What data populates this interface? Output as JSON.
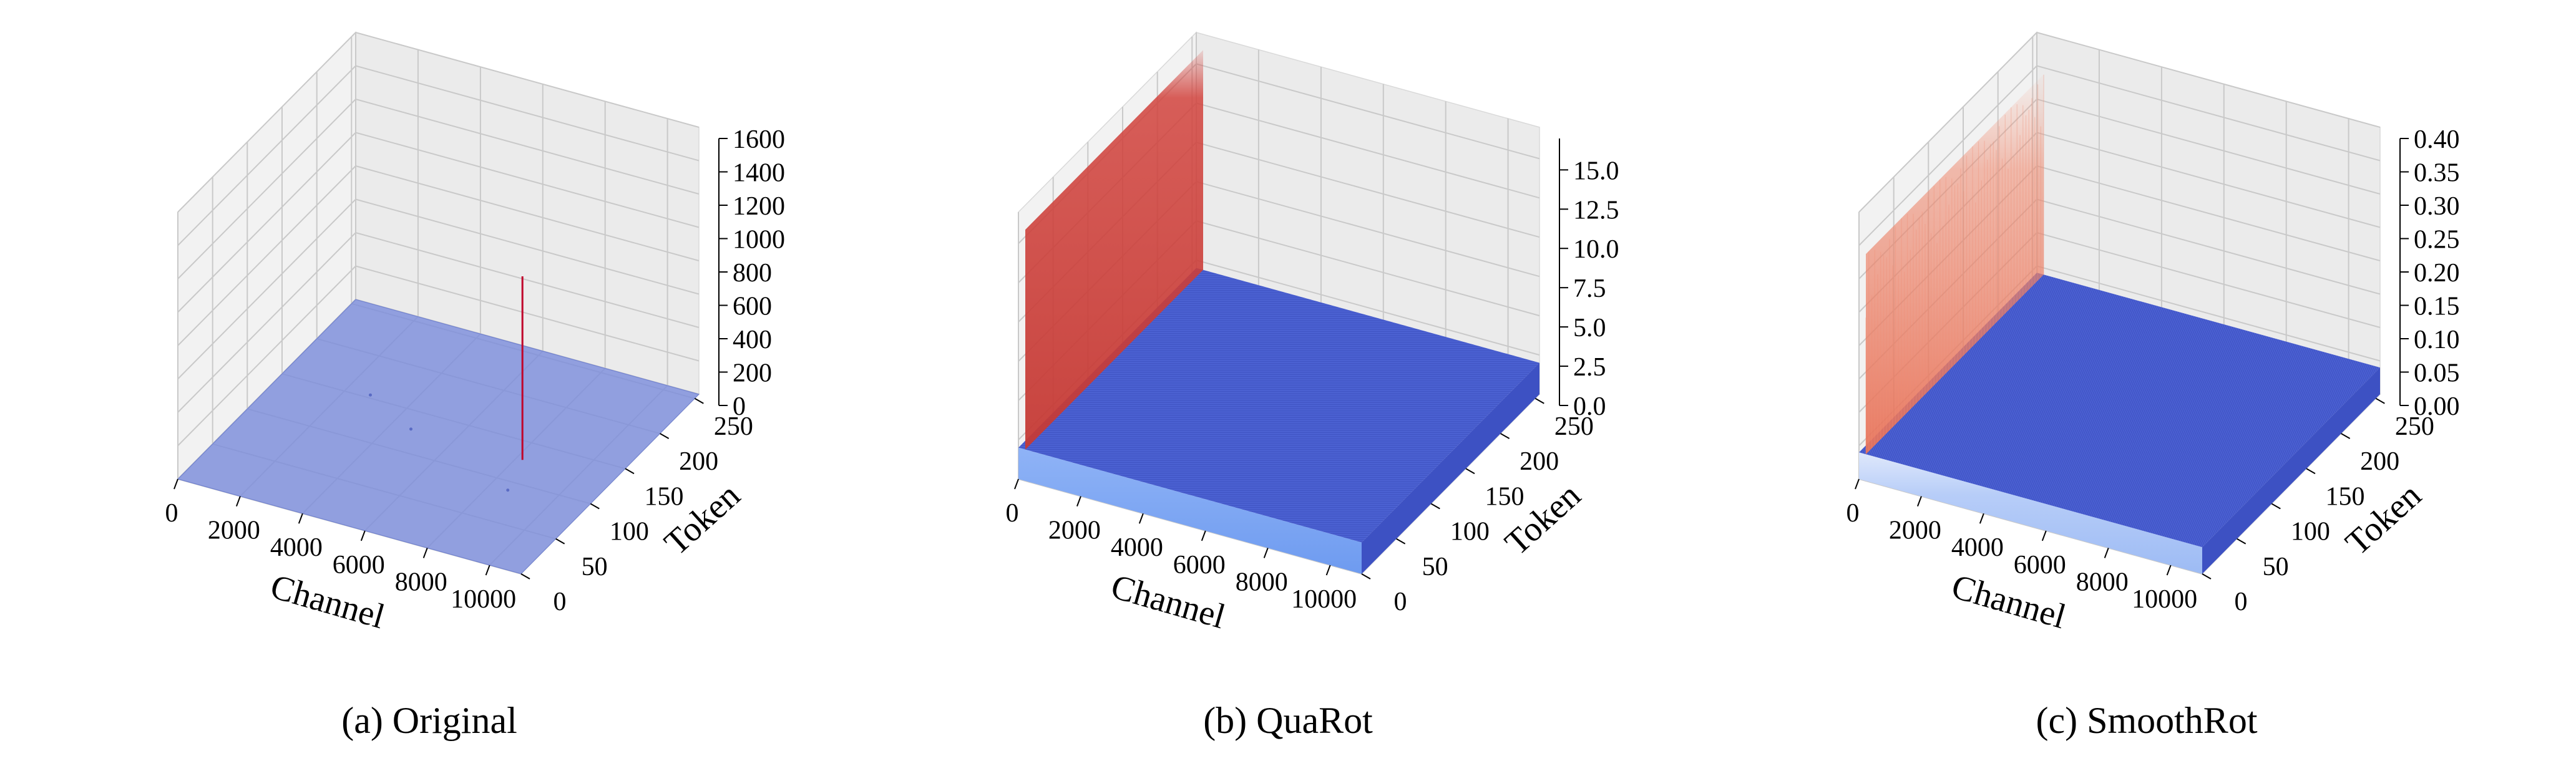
{
  "chart_data": [
    {
      "type": "surface3d",
      "caption": "(a) Original",
      "xlabel": "Channel",
      "ylabel": "Token",
      "zlabel": "",
      "xlim": [
        0,
        11008
      ],
      "ylim": [
        0,
        256
      ],
      "zlim": [
        0,
        1600
      ],
      "x_ticks": [
        0,
        2000,
        4000,
        6000,
        8000,
        10000
      ],
      "y_ticks": [
        0,
        50,
        100,
        150,
        200,
        250
      ],
      "z_ticks": [
        0,
        200,
        400,
        600,
        800,
        1000,
        1200,
        1400,
        1600
      ],
      "z_tick_labels": [
        "0",
        "200",
        "400",
        "600",
        "800",
        "1000",
        "1200",
        "1400",
        "1600"
      ],
      "surface_level": 0,
      "outliers": [
        {
          "channel": 8200,
          "token_start": 0,
          "token_end": 256,
          "value": 1100,
          "color": "#c0002a"
        }
      ],
      "colors": {
        "floor": "#7f8fdb",
        "outlier": "#c0002a"
      }
    },
    {
      "type": "surface3d",
      "caption": "(b) QuaRot",
      "xlabel": "Channel",
      "ylabel": "Token",
      "zlabel": "",
      "xlim": [
        0,
        11008
      ],
      "ylim": [
        0,
        256
      ],
      "zlim": [
        0,
        17
      ],
      "x_ticks": [
        0,
        2000,
        4000,
        6000,
        8000,
        10000
      ],
      "y_ticks": [
        0,
        50,
        100,
        150,
        200,
        250
      ],
      "z_ticks": [
        0,
        2.5,
        5.0,
        7.5,
        10.0,
        12.5,
        15.0
      ],
      "z_tick_labels": [
        "0.0",
        "2.5",
        "5.0",
        "7.5",
        "10.0",
        "12.5",
        "15.0"
      ],
      "surface_level": 2.0,
      "outlier_token": 0,
      "outlier_value": 16.0,
      "colors": {
        "floor": "#4a5fd1",
        "front": "#7aa6f4",
        "outlier_wall": "#d2433d"
      }
    },
    {
      "type": "surface3d",
      "caption": "(c) SmoothRot",
      "xlabel": "Channel",
      "ylabel": "Token",
      "zlabel": "",
      "xlim": [
        0,
        11008
      ],
      "ylim": [
        0,
        256
      ],
      "zlim": [
        0,
        0.4
      ],
      "x_ticks": [
        0,
        2000,
        4000,
        6000,
        8000,
        10000
      ],
      "y_ticks": [
        0,
        50,
        100,
        150,
        200,
        250
      ],
      "z_ticks": [
        0,
        0.05,
        0.1,
        0.15,
        0.2,
        0.25,
        0.3,
        0.35,
        0.4
      ],
      "z_tick_labels": [
        "0.00",
        "0.05",
        "0.10",
        "0.15",
        "0.20",
        "0.25",
        "0.30",
        "0.35",
        "0.40"
      ],
      "surface_level": 0.04,
      "outlier_token": 0,
      "outlier_value": 0.34,
      "colors": {
        "floor": "#4a5fd1",
        "front": "#a9c4f7",
        "outlier_wall": "#ee8468"
      }
    }
  ]
}
